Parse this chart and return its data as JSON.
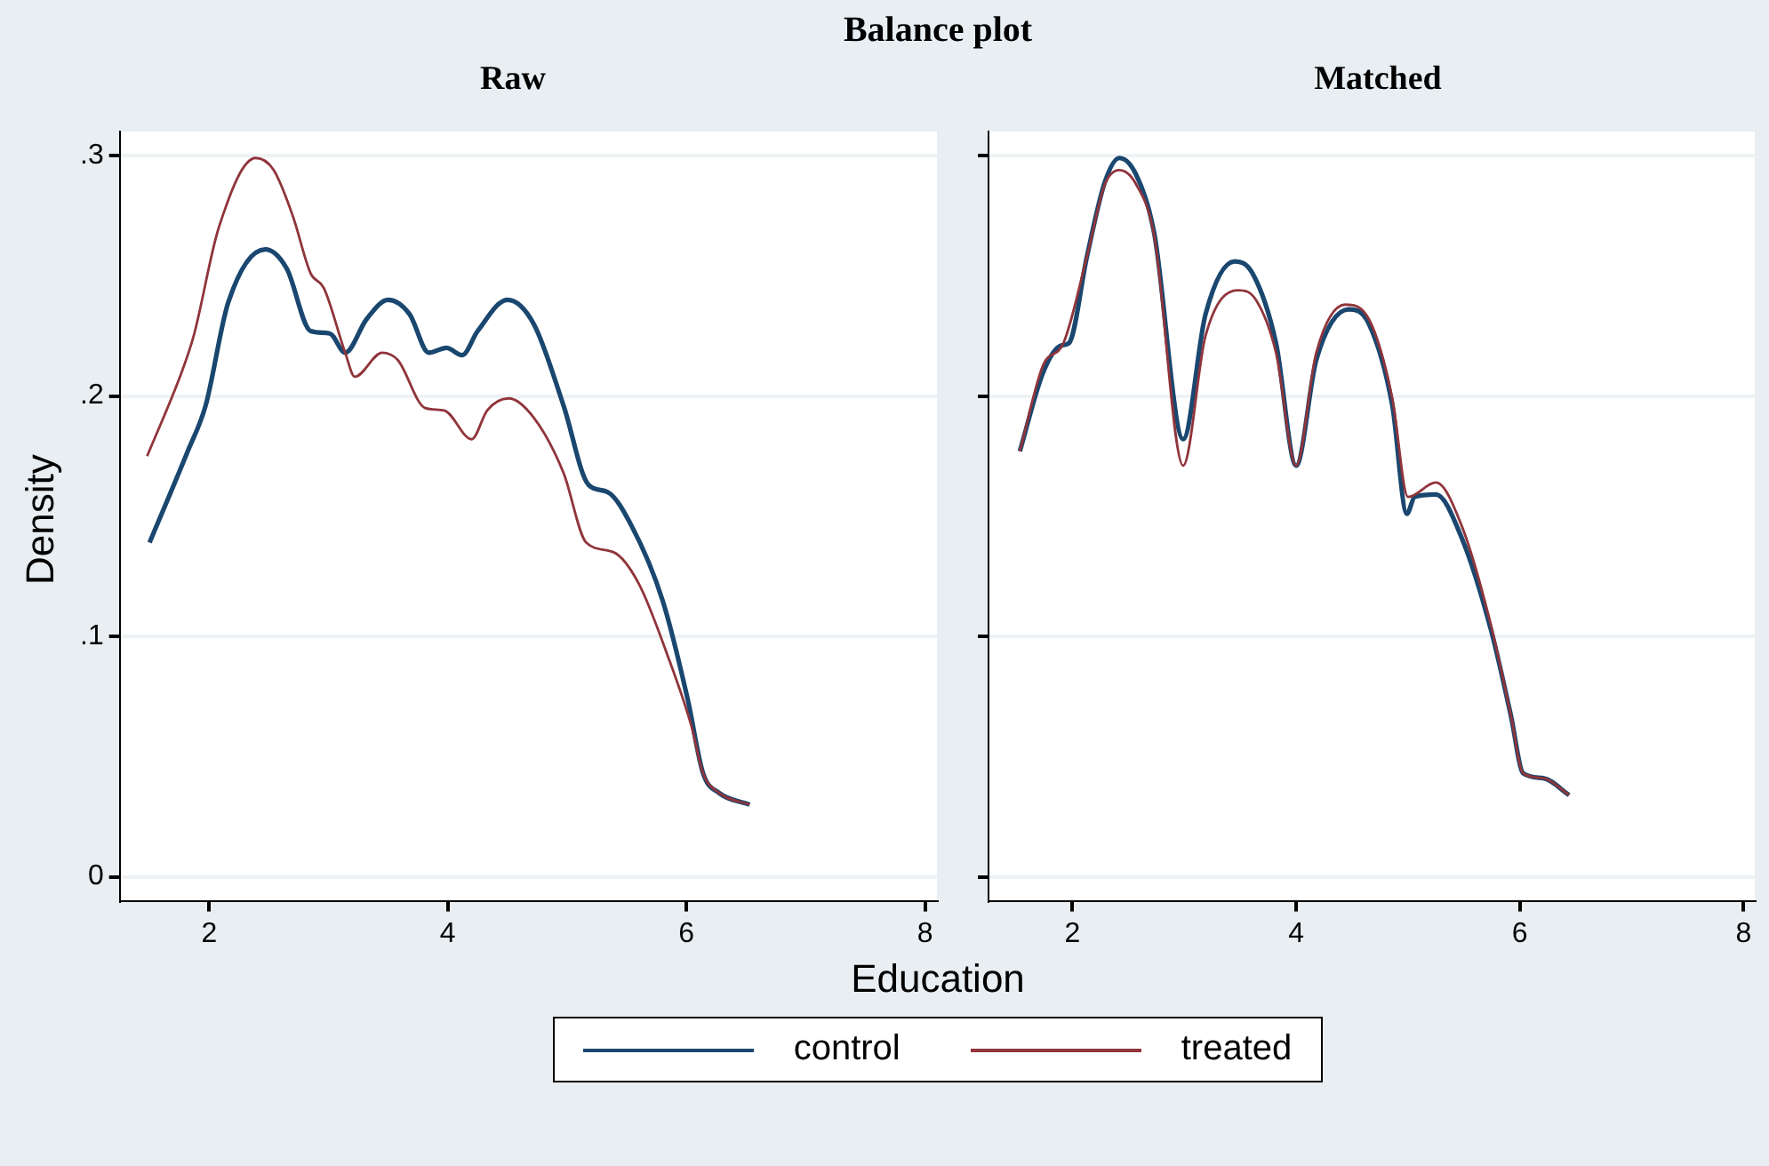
{
  "chart_data": [
    {
      "type": "line",
      "title": "Balance plot",
      "subtitle": "Raw",
      "xlabel": "Education",
      "ylabel": "Density",
      "xlim": [
        1.25,
        8.1
      ],
      "ylim": [
        -0.01,
        0.31
      ],
      "xticks": [
        2,
        4,
        6,
        8
      ],
      "yticks": [
        0,
        {
          "value": 0.1,
          "label": ".1"
        },
        {
          "value": 0.2,
          "label": ".2"
        },
        {
          "value": 0.3,
          "label": ".3"
        }
      ],
      "grid": "y",
      "legend": "bottom",
      "line_style": "solid",
      "marker": "none",
      "series": [
        {
          "name": "control",
          "color": "#1a476f",
          "x": [
            1.5,
            1.82,
            1.97,
            2.16,
            2.47,
            2.65,
            2.85,
            3.01,
            3.14,
            3.32,
            3.5,
            3.68,
            3.84,
            3.99,
            4.12,
            4.25,
            4.5,
            4.72,
            4.97,
            5.18,
            5.34,
            5.54,
            5.8,
            6.01,
            6.14,
            6.27,
            6.53
          ],
          "values": [
            0.139,
            0.177,
            0.196,
            0.239,
            0.261,
            0.253,
            0.227,
            0.226,
            0.218,
            0.232,
            0.24,
            0.234,
            0.218,
            0.22,
            0.217,
            0.227,
            0.24,
            0.23,
            0.196,
            0.163,
            0.16,
            0.146,
            0.115,
            0.074,
            0.043,
            0.035,
            0.03
          ]
        },
        {
          "name": "treated",
          "color": "#90353b",
          "x": [
            1.48,
            1.77,
            1.87,
            2.08,
            2.39,
            2.54,
            2.7,
            2.85,
            2.96,
            3.14,
            3.22,
            3.45,
            3.58,
            3.81,
            3.97,
            4.2,
            4.33,
            4.51,
            4.72,
            4.97,
            5.16,
            5.39,
            5.6,
            5.85,
            6.04,
            6.14,
            6.27,
            6.53
          ],
          "values": [
            0.175,
            0.21,
            0.225,
            0.27,
            0.299,
            0.294,
            0.275,
            0.251,
            0.245,
            0.218,
            0.208,
            0.218,
            0.215,
            0.195,
            0.194,
            0.182,
            0.194,
            0.199,
            0.191,
            0.168,
            0.139,
            0.135,
            0.122,
            0.091,
            0.063,
            0.043,
            0.035,
            0.03
          ]
        }
      ]
    },
    {
      "type": "line",
      "subtitle": "Matched",
      "xlim": [
        1.25,
        8.1
      ],
      "ylim": [
        -0.01,
        0.31
      ],
      "xticks": [
        2,
        4,
        6,
        8
      ],
      "yticks": [
        {
          "value": 0,
          "label": null
        },
        {
          "value": 0.1,
          "label": null
        },
        {
          "value": 0.2,
          "label": null
        },
        {
          "value": 0.3,
          "label": null
        }
      ],
      "grid": "y",
      "tick_labels": "x",
      "line_style": "solid",
      "marker": "none",
      "series": [
        {
          "color": "#1a476f",
          "x": [
            1.53,
            1.74,
            1.9,
            1.97,
            2.13,
            2.29,
            2.42,
            2.57,
            2.73,
            2.99,
            3.19,
            3.45,
            3.61,
            3.82,
            4.0,
            4.18,
            4.47,
            4.65,
            4.86,
            4.99,
            5.06,
            5.25,
            5.48,
            5.74,
            5.92,
            6.03,
            6.21,
            6.44
          ],
          "values": [
            0.177,
            0.21,
            0.221,
            0.222,
            0.258,
            0.289,
            0.299,
            0.292,
            0.268,
            0.182,
            0.234,
            0.256,
            0.251,
            0.222,
            0.171,
            0.215,
            0.236,
            0.23,
            0.196,
            0.151,
            0.158,
            0.159,
            0.141,
            0.103,
            0.067,
            0.043,
            0.041,
            0.034
          ]
        },
        {
          "color": "#90353b",
          "x": [
            1.53,
            1.74,
            1.92,
            2.13,
            2.29,
            2.42,
            2.57,
            2.73,
            2.99,
            3.19,
            3.48,
            3.64,
            3.82,
            4.0,
            4.18,
            4.44,
            4.65,
            4.86,
            5.0,
            5.25,
            5.48,
            5.74,
            5.92,
            6.03,
            6.21,
            6.44
          ],
          "values": [
            0.177,
            0.213,
            0.222,
            0.258,
            0.288,
            0.294,
            0.288,
            0.267,
            0.171,
            0.225,
            0.244,
            0.24,
            0.218,
            0.171,
            0.218,
            0.238,
            0.232,
            0.199,
            0.158,
            0.164,
            0.146,
            0.105,
            0.067,
            0.043,
            0.041,
            0.034
          ]
        }
      ]
    }
  ]
}
